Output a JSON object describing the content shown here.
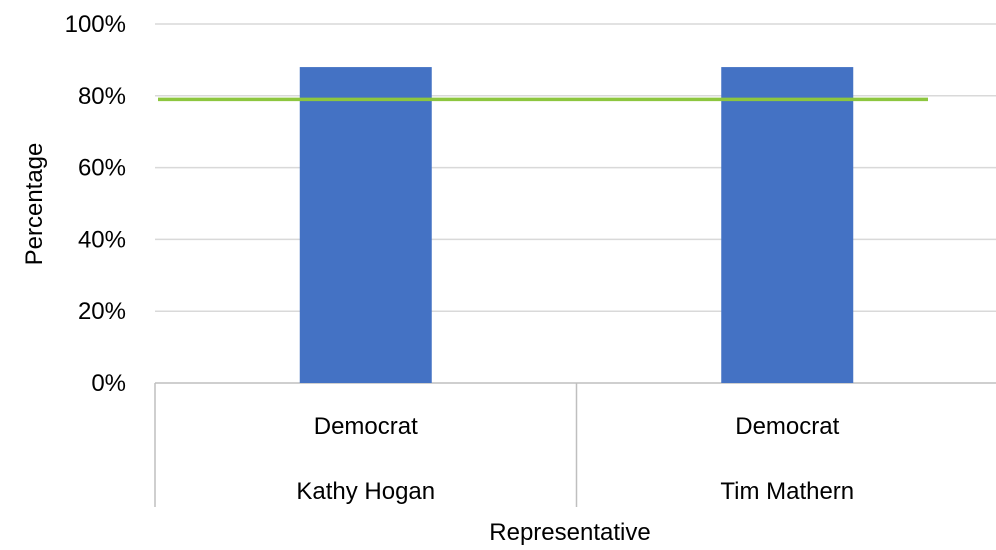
{
  "chart_data": {
    "type": "bar",
    "title": "",
    "xlabel": "Representative",
    "ylabel": "Percentage",
    "ylim": [
      0,
      100
    ],
    "yticks": [
      "0%",
      "20%",
      "40%",
      "60%",
      "80%",
      "100%"
    ],
    "ytick_values": [
      0,
      20,
      40,
      60,
      80,
      100
    ],
    "categories": [
      {
        "party": "Democrat",
        "name": "Kathy Hogan"
      },
      {
        "party": "Democrat",
        "name": "Tim Mathern"
      }
    ],
    "series": [
      {
        "values": [
          88,
          88
        ],
        "color": "#4472c4"
      }
    ],
    "reference_line": {
      "value": 79,
      "color": "#8dc63f"
    },
    "grid": true,
    "legend": "none"
  }
}
